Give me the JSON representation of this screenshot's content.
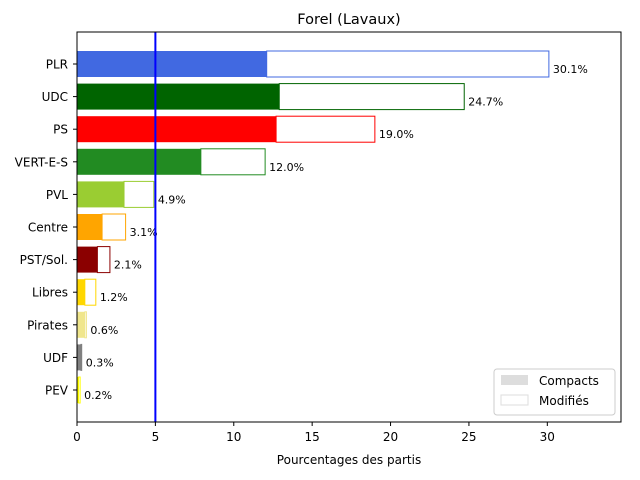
{
  "chart_data": {
    "type": "bar",
    "orientation": "horizontal",
    "title": "Forel (Lavaux)",
    "xlabel": "Pourcentages des partis",
    "ylabel": "",
    "xlim": [
      0,
      34.7
    ],
    "xticks": [
      0,
      5,
      10,
      15,
      20,
      25,
      30
    ],
    "reference_line": {
      "x": 5,
      "color": "#0000ff"
    },
    "grid": false,
    "legend_position": "bottom-right",
    "legend": [
      {
        "label": "Compacts",
        "style": "filled",
        "color": "#dddddd"
      },
      {
        "label": "Modifiés",
        "style": "outline",
        "color": "#dddddd"
      }
    ],
    "categories": [
      "PLR",
      "UDC",
      "PS",
      "VERT-E-S",
      "PVL",
      "Centre",
      "PST/Sol.",
      "Libres",
      "Pirates",
      "UDF",
      "PEV"
    ],
    "series": [
      {
        "name": "Compacts",
        "values": [
          12.1,
          12.9,
          12.7,
          7.9,
          3.0,
          1.6,
          1.3,
          0.5,
          0.5,
          0.25,
          0.1
        ]
      },
      {
        "name": "Modifiés",
        "values": [
          18.0,
          11.8,
          6.3,
          4.1,
          1.9,
          1.5,
          0.8,
          0.7,
          0.1,
          0.05,
          0.1
        ]
      }
    ],
    "totals": [
      30.1,
      24.7,
      19.0,
      12.0,
      4.9,
      3.1,
      2.1,
      1.2,
      0.6,
      0.3,
      0.2
    ],
    "total_labels": [
      "30.1%",
      "24.7%",
      "19.0%",
      "12.0%",
      "4.9%",
      "3.1%",
      "2.1%",
      "1.2%",
      "0.6%",
      "0.3%",
      "0.2%"
    ],
    "colors": [
      "#4169e1",
      "#006400",
      "#ff0000",
      "#228b22",
      "#9acd32",
      "#ffa500",
      "#8b0000",
      "#ffd700",
      "#f0e68c",
      "#808080",
      "#ffff00"
    ]
  }
}
